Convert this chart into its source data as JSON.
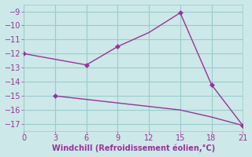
{
  "line1_x": [
    0,
    3,
    6,
    9,
    12,
    15,
    18,
    21
  ],
  "line1_y": [
    -12.0,
    -12.4,
    -12.8,
    -11.5,
    -10.5,
    -9.1,
    -14.2,
    -17.1
  ],
  "line1_markers_x": [
    0,
    6,
    9,
    15,
    18,
    21
  ],
  "line1_markers_y": [
    -12.0,
    -12.8,
    -11.5,
    -9.1,
    -14.2,
    -17.1
  ],
  "line2_x": [
    3,
    9,
    12,
    15,
    18,
    21
  ],
  "line2_y": [
    -15.0,
    -15.5,
    -15.75,
    -16.0,
    -16.5,
    -17.1
  ],
  "line2_markers_x": [
    3
  ],
  "line2_markers_y": [
    -15.0
  ],
  "line_color": "#993399",
  "bg_color": "#cce8e8",
  "grid_color": "#99cccc",
  "xlabel": "Windchill (Refroidissement éolien,°C)",
  "xlabel_color": "#993399",
  "tick_color": "#993399",
  "xlim": [
    0,
    21
  ],
  "ylim": [
    -17.5,
    -8.5
  ],
  "xticks": [
    0,
    3,
    6,
    9,
    12,
    15,
    18,
    21
  ],
  "yticks": [
    -9,
    -10,
    -11,
    -12,
    -13,
    -14,
    -15,
    -16,
    -17
  ],
  "marker": "D",
  "marker_size": 3.5,
  "line_width": 1.0
}
